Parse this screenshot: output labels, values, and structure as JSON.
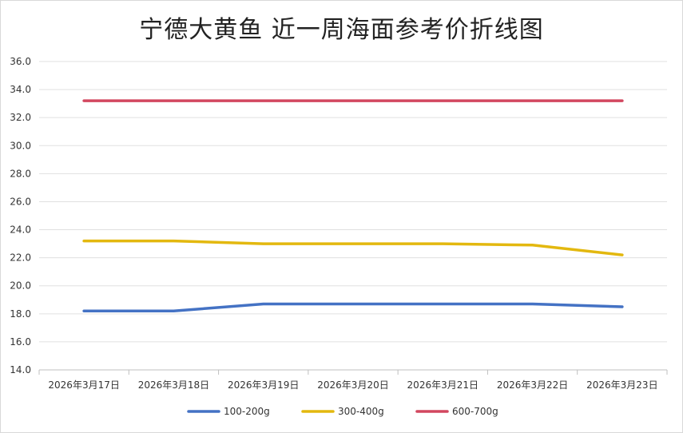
{
  "chart_data": {
    "type": "line",
    "title": "宁德大黄鱼 近一周海面参考价折线图",
    "xlabel": "",
    "ylabel": "",
    "categories": [
      "2026年3月17日",
      "2026年3月18日",
      "2026年3月19日",
      "2026年3月20日",
      "2026年3月21日",
      "2026年3月22日",
      "2026年3月23日"
    ],
    "ylim": [
      14.0,
      36.0
    ],
    "yticks": [
      "14.0",
      "16.0",
      "18.0",
      "20.0",
      "22.0",
      "24.0",
      "26.0",
      "28.0",
      "30.0",
      "32.0",
      "34.0",
      "36.0"
    ],
    "ytick_values": [
      14,
      16,
      18,
      20,
      22,
      24,
      26,
      28,
      30,
      32,
      34,
      36
    ],
    "grid": true,
    "legend_position": "bottom",
    "series": [
      {
        "name": "100-200g",
        "color": "#4472c4",
        "values": [
          18.2,
          18.2,
          18.7,
          18.7,
          18.7,
          18.7,
          18.5
        ]
      },
      {
        "name": "300-400g",
        "color": "#e3b80f",
        "values": [
          23.2,
          23.2,
          23.0,
          23.0,
          23.0,
          22.9,
          22.2
        ]
      },
      {
        "name": "600-700g",
        "color": "#d2475f",
        "values": [
          33.2,
          33.2,
          33.2,
          33.2,
          33.2,
          33.2,
          33.2
        ]
      }
    ]
  }
}
